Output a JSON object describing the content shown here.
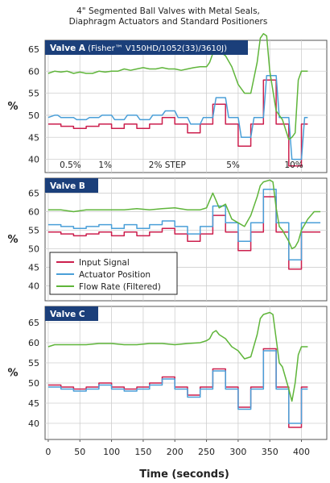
{
  "figure": {
    "title_line1": "4\" Segmented Ball Valves with Metal Seals,",
    "title_line2": "Diaphragm Actuators and Standard Positioners",
    "xlabel": "Time (seconds)"
  },
  "colors": {
    "input": "#cc1f4d",
    "actuator": "#4a9fd8",
    "flow": "#5fb53a",
    "header": "#1b3f7a",
    "grid": "#cfcfcf"
  },
  "legend": {
    "items": [
      "Input Signal",
      "Actuator Position",
      "Flow Rate (Filtered)"
    ]
  },
  "chart_data": [
    {
      "type": "line",
      "panel_title": "Valve A",
      "panel_subtitle": "(Fisher™ V150HD/1052(33)/3610J)",
      "ylabel": "%",
      "xlim": [
        0,
        440
      ],
      "ylim": [
        37,
        67
      ],
      "x_ticks": [],
      "y_ticks": [
        40,
        45,
        50,
        55,
        60,
        65
      ],
      "grid": true,
      "annotations": [
        {
          "text": "0.5%",
          "x": 35
        },
        {
          "text": "1%",
          "x": 90
        },
        {
          "text": "2% STEP",
          "x": 188
        },
        {
          "text": "5%",
          "x": 292
        },
        {
          "text": "10%",
          "x": 388
        }
      ],
      "series": [
        {
          "name": "Input Signal",
          "x": [
            0,
            20,
            20,
            40,
            40,
            60,
            60,
            80,
            80,
            100,
            100,
            120,
            120,
            140,
            140,
            160,
            160,
            180,
            180,
            200,
            200,
            220,
            220,
            240,
            240,
            260,
            260,
            280,
            280,
            300,
            300,
            320,
            320,
            340,
            340,
            360,
            360,
            380,
            380,
            400,
            400,
            410
          ],
          "y": [
            48,
            48,
            47.5,
            47.5,
            47,
            47,
            47.5,
            47.5,
            48,
            48,
            47,
            47,
            48,
            48,
            47,
            47,
            48,
            48,
            49.5,
            49.5,
            48,
            48,
            46,
            46,
            48,
            48,
            52.5,
            52.5,
            48,
            48,
            43,
            43,
            48,
            48,
            58,
            58,
            48,
            48,
            38.5,
            38.5,
            48,
            48
          ]
        },
        {
          "name": "Actuator Position",
          "x": [
            0,
            10,
            15,
            20,
            40,
            45,
            60,
            65,
            80,
            85,
            100,
            105,
            120,
            125,
            140,
            145,
            160,
            165,
            180,
            185,
            200,
            205,
            220,
            225,
            240,
            245,
            260,
            265,
            280,
            285,
            300,
            305,
            320,
            325,
            340,
            345,
            360,
            365,
            380,
            385,
            400,
            405,
            410
          ],
          "y": [
            49.5,
            50,
            50,
            49.5,
            49.5,
            49,
            49,
            49.5,
            49.5,
            50,
            50,
            49,
            49,
            50,
            50,
            49,
            49,
            50,
            50,
            51,
            51,
            49.5,
            49.5,
            48,
            48,
            49.5,
            49.5,
            54,
            54,
            49.5,
            49.5,
            45,
            45,
            49.5,
            49.5,
            59,
            59,
            49.5,
            49.5,
            40,
            40,
            49.5,
            49.5
          ]
        },
        {
          "name": "Flow Rate (Filtered)",
          "x": [
            0,
            10,
            20,
            30,
            40,
            50,
            60,
            70,
            80,
            90,
            100,
            110,
            120,
            130,
            140,
            150,
            160,
            170,
            180,
            190,
            200,
            210,
            220,
            230,
            240,
            250,
            255,
            260,
            270,
            280,
            290,
            300,
            310,
            320,
            330,
            335,
            340,
            345,
            350,
            360,
            370,
            380,
            385,
            390,
            395,
            400,
            405,
            410
          ],
          "y": [
            59.5,
            60,
            59.8,
            60,
            59.5,
            59.8,
            59.5,
            59.5,
            60,
            59.8,
            60,
            60,
            60.5,
            60.2,
            60.5,
            60.8,
            60.5,
            60.5,
            60.8,
            60.5,
            60.5,
            60.2,
            60.5,
            60.8,
            61,
            61,
            62,
            64,
            64.5,
            63.5,
            61,
            57,
            55,
            55,
            62,
            67.5,
            68.5,
            68,
            60,
            51,
            49,
            44.5,
            45,
            46,
            58,
            60,
            60,
            60
          ]
        }
      ]
    },
    {
      "type": "line",
      "panel_title": "Valve B",
      "ylabel": "%",
      "xlim": [
        0,
        440
      ],
      "ylim": [
        36,
        69
      ],
      "x_ticks": [],
      "y_ticks": [
        40,
        45,
        50,
        55,
        60,
        65
      ],
      "grid": true,
      "series": [
        {
          "name": "Input Signal",
          "x": [
            0,
            20,
            20,
            40,
            40,
            60,
            60,
            80,
            80,
            100,
            100,
            120,
            120,
            140,
            140,
            160,
            160,
            180,
            180,
            200,
            200,
            220,
            220,
            240,
            240,
            260,
            260,
            280,
            280,
            300,
            300,
            320,
            320,
            340,
            340,
            360,
            360,
            380,
            380,
            400,
            400,
            430
          ],
          "y": [
            54.5,
            54.5,
            54,
            54,
            53.5,
            53.5,
            54,
            54,
            54.5,
            54.5,
            53.5,
            53.5,
            54.5,
            54.5,
            53.5,
            53.5,
            54.5,
            54.5,
            55.5,
            55.5,
            54,
            54,
            52,
            52,
            54,
            54,
            59,
            59,
            54.5,
            54.5,
            49.5,
            49.5,
            54.5,
            54.5,
            64,
            64,
            54.5,
            54.5,
            44.5,
            44.5,
            54.5,
            54.5
          ]
        },
        {
          "name": "Actuator Position",
          "x": [
            0,
            20,
            20,
            40,
            40,
            60,
            60,
            80,
            80,
            100,
            100,
            120,
            120,
            140,
            140,
            160,
            160,
            180,
            180,
            200,
            200,
            220,
            220,
            240,
            240,
            260,
            260,
            280,
            280,
            300,
            300,
            320,
            320,
            340,
            340,
            360,
            360,
            380,
            380,
            400,
            400,
            430
          ],
          "y": [
            56.5,
            56.5,
            56,
            56,
            55.5,
            55.5,
            56,
            56,
            56.5,
            56.5,
            55.5,
            55.5,
            56.5,
            56.5,
            55.5,
            55.5,
            56.5,
            56.5,
            57.5,
            57.5,
            56,
            56,
            54,
            54,
            56,
            56,
            61.5,
            61.5,
            57,
            57,
            52,
            52,
            57,
            57,
            66,
            66,
            57,
            57,
            47,
            47,
            57,
            57
          ]
        },
        {
          "name": "Flow Rate (Filtered)",
          "x": [
            0,
            20,
            40,
            60,
            80,
            100,
            120,
            140,
            160,
            180,
            200,
            220,
            240,
            250,
            255,
            260,
            265,
            270,
            280,
            290,
            300,
            310,
            320,
            330,
            335,
            340,
            350,
            355,
            360,
            365,
            370,
            380,
            385,
            390,
            395,
            400,
            410,
            420,
            430
          ],
          "y": [
            60.5,
            60.5,
            60,
            60.5,
            60.5,
            60.5,
            60.5,
            60.8,
            60.5,
            60.8,
            61,
            60.5,
            60.5,
            61,
            63,
            65,
            63,
            61,
            62,
            58,
            57,
            56,
            59,
            64,
            67,
            68,
            68.5,
            68,
            61,
            56,
            55,
            52,
            50,
            50.5,
            52,
            55,
            58,
            60,
            60
          ]
        }
      ]
    },
    {
      "type": "line",
      "panel_title": "Valve C",
      "ylabel": "%",
      "xlim": [
        -5,
        440
      ],
      "ylim": [
        36,
        69
      ],
      "x_ticks": [
        0,
        50,
        100,
        150,
        200,
        250,
        300,
        350,
        400
      ],
      "y_ticks": [
        40,
        45,
        50,
        55,
        60,
        65
      ],
      "grid": true,
      "series": [
        {
          "name": "Input Signal",
          "x": [
            0,
            20,
            20,
            40,
            40,
            60,
            60,
            80,
            80,
            100,
            100,
            120,
            120,
            140,
            140,
            160,
            160,
            180,
            180,
            200,
            200,
            220,
            220,
            240,
            240,
            260,
            260,
            280,
            280,
            300,
            300,
            320,
            320,
            340,
            340,
            360,
            360,
            380,
            380,
            400,
            400,
            410
          ],
          "y": [
            49.5,
            49.5,
            49,
            49,
            48.5,
            48.5,
            49,
            49,
            50,
            50,
            49,
            49,
            48.5,
            48.5,
            49,
            49,
            50,
            50,
            51.5,
            51.5,
            49,
            49,
            47,
            47,
            49,
            49,
            53.5,
            53.5,
            49,
            49,
            44,
            44,
            49,
            49,
            58.5,
            58.5,
            49,
            49,
            39,
            39,
            49,
            49
          ]
        },
        {
          "name": "Actuator Position",
          "x": [
            0,
            20,
            20,
            40,
            40,
            60,
            60,
            80,
            80,
            100,
            100,
            120,
            120,
            140,
            140,
            160,
            160,
            180,
            180,
            200,
            200,
            220,
            220,
            240,
            240,
            260,
            260,
            280,
            280,
            300,
            300,
            320,
            320,
            340,
            340,
            360,
            360,
            380,
            380,
            400,
            400,
            410
          ],
          "y": [
            49,
            49,
            48.5,
            48.5,
            48,
            48,
            48.5,
            48.5,
            49.5,
            49.5,
            48.5,
            48.5,
            48,
            48,
            48.5,
            48.5,
            49.5,
            49.5,
            51,
            51,
            48.5,
            48.5,
            46.5,
            46.5,
            48.5,
            48.5,
            53,
            53,
            48.5,
            48.5,
            43.5,
            43.5,
            48.5,
            48.5,
            58,
            58,
            48.5,
            48.5,
            40,
            40,
            48.5,
            48.5
          ]
        },
        {
          "name": "Flow Rate (Filtered)",
          "x": [
            0,
            10,
            20,
            40,
            60,
            80,
            100,
            120,
            140,
            160,
            180,
            200,
            220,
            240,
            250,
            255,
            260,
            265,
            270,
            280,
            290,
            300,
            310,
            320,
            330,
            335,
            340,
            350,
            355,
            360,
            365,
            370,
            380,
            385,
            390,
            395,
            400,
            410
          ],
          "y": [
            59,
            59.5,
            59.5,
            59.5,
            59.5,
            59.8,
            59.8,
            59.5,
            59.5,
            59.8,
            59.8,
            59.5,
            59.8,
            60,
            60.5,
            61,
            62.5,
            63,
            62,
            61,
            59,
            58,
            56,
            56.5,
            62,
            66,
            67,
            67.5,
            67,
            61,
            55,
            54,
            48.5,
            45.5,
            50,
            57,
            59,
            59
          ]
        }
      ]
    }
  ]
}
